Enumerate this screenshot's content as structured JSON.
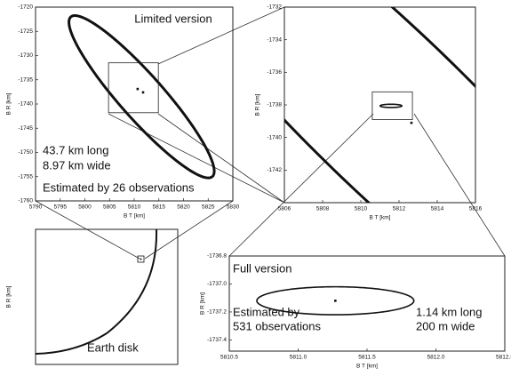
{
  "chart_data": [
    {
      "type": "ellipse",
      "xlabel": "B T [km]",
      "ylabel": "B R [km]",
      "xlim": [
        5790,
        5830
      ],
      "xticks": [
        5790,
        5795,
        5800,
        5805,
        5810,
        5815,
        5820,
        5825,
        5830
      ],
      "ylim": [
        -1760,
        -1720
      ],
      "yticks": [
        -1720,
        -1725,
        -1730,
        -1735,
        -1740,
        -1745,
        -1750,
        -1755,
        -1760
      ],
      "annotations": [
        "Limited version",
        "43.7 km long",
        "8.97 km wide",
        "Estimated by 26 observations"
      ],
      "ellipses": [
        {
          "cx": 5811.5,
          "cy": -1738.5,
          "a": 21.85,
          "b": 4.485,
          "angle": -49
        }
      ],
      "boxes": [
        {
          "x": [
            5804.8,
            5814.9
          ],
          "y": [
            -1741.8,
            -1731.5
          ]
        }
      ],
      "points": [
        {
          "x": 5810.7,
          "y": -1736.9
        },
        {
          "x": 5811.8,
          "y": -1737.6
        }
      ]
    },
    {
      "type": "ellipse",
      "xlabel": "B T [km]",
      "ylabel": "B R [km]",
      "xlim": [
        5806,
        5816
      ],
      "xticks": [
        5806,
        5808,
        5810,
        5812,
        5814,
        5816
      ],
      "ylim": [
        -1744,
        -1732
      ],
      "yticks": [
        -1732,
        -1734,
        -1736,
        -1738,
        -1740,
        -1742
      ],
      "annotations": [],
      "ellipses": [
        {
          "cx": 5811.5,
          "cy": -1738.5,
          "a": 21.85,
          "b": 4.485,
          "angle": -49
        },
        {
          "cx": 5811.58,
          "cy": -1738.06,
          "a": 0.57,
          "b": 0.1,
          "angle": 0
        }
      ],
      "boxes": [
        {
          "x": [
            5810.6,
            5812.7
          ],
          "y": [
            -1738.9,
            -1737.2
          ]
        }
      ],
      "points": [
        {
          "x": 5812.65,
          "y": -1739.1
        }
      ]
    },
    {
      "type": "disk",
      "xlabel": "B T [km]",
      "ylabel": "B R [km]",
      "annotations": [
        "Earth disk"
      ]
    },
    {
      "type": "ellipse",
      "xlabel": "B T [km]",
      "ylabel": "B R [km]",
      "xlim": [
        5810.5,
        5812.5
      ],
      "xticks": [
        {
          "value": 5810.5,
          "label": "5810.5"
        },
        {
          "value": 5811.0,
          "label": "5811.0"
        },
        {
          "value": 5811.5,
          "label": "5811.5"
        },
        {
          "value": 5812.0,
          "label": "5812.0"
        },
        {
          "value": 5812.5,
          "label": "5812.5"
        }
      ],
      "ylim": [
        -1737.48,
        -1736.8
      ],
      "yticks": [
        -1736.8,
        {
          "value": -1737.0,
          "label": "-1737.0"
        },
        -1737.2,
        -1737.4
      ],
      "annotations": [
        "Full version",
        "Estimated by",
        "531 observations",
        "1.14 km long",
        "200 m wide"
      ],
      "ellipses": [
        {
          "cx": 5811.27,
          "cy": -1737.12,
          "a": 0.57,
          "b": 0.1,
          "angle": 0
        }
      ],
      "boxes": [],
      "points": [
        {
          "x": 5811.27,
          "y": -1737.12
        }
      ]
    }
  ]
}
